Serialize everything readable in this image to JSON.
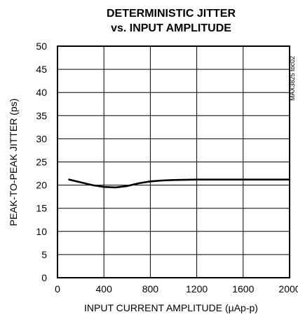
{
  "chart_data": {
    "type": "line",
    "title": "DETERMINISTIC JITTER",
    "subtitle": "vs. INPUT AMPLITUDE",
    "xlabel": "INPUT CURRENT AMPLITUDE (µAp-p)",
    "ylabel": "PEAK-TO-PEAK JITTER (ps)",
    "xlim": [
      0,
      2000
    ],
    "ylim": [
      0,
      50
    ],
    "xticks": [
      0,
      400,
      800,
      1200,
      1600,
      2000
    ],
    "yticks": [
      0,
      5,
      10,
      15,
      20,
      25,
      30,
      35,
      40,
      45,
      50
    ],
    "grid": true,
    "x": [
      100,
      200,
      300,
      400,
      500,
      600,
      700,
      800,
      900,
      1000,
      1200,
      1400,
      1600,
      1800,
      2000
    ],
    "series": [
      {
        "values": [
          21.2,
          20.6,
          20.0,
          19.6,
          19.5,
          19.8,
          20.4,
          20.8,
          21.0,
          21.1,
          21.2,
          21.2,
          21.2,
          21.2,
          21.2
        ]
      }
    ],
    "side_note": "MAX3825 toc02"
  }
}
